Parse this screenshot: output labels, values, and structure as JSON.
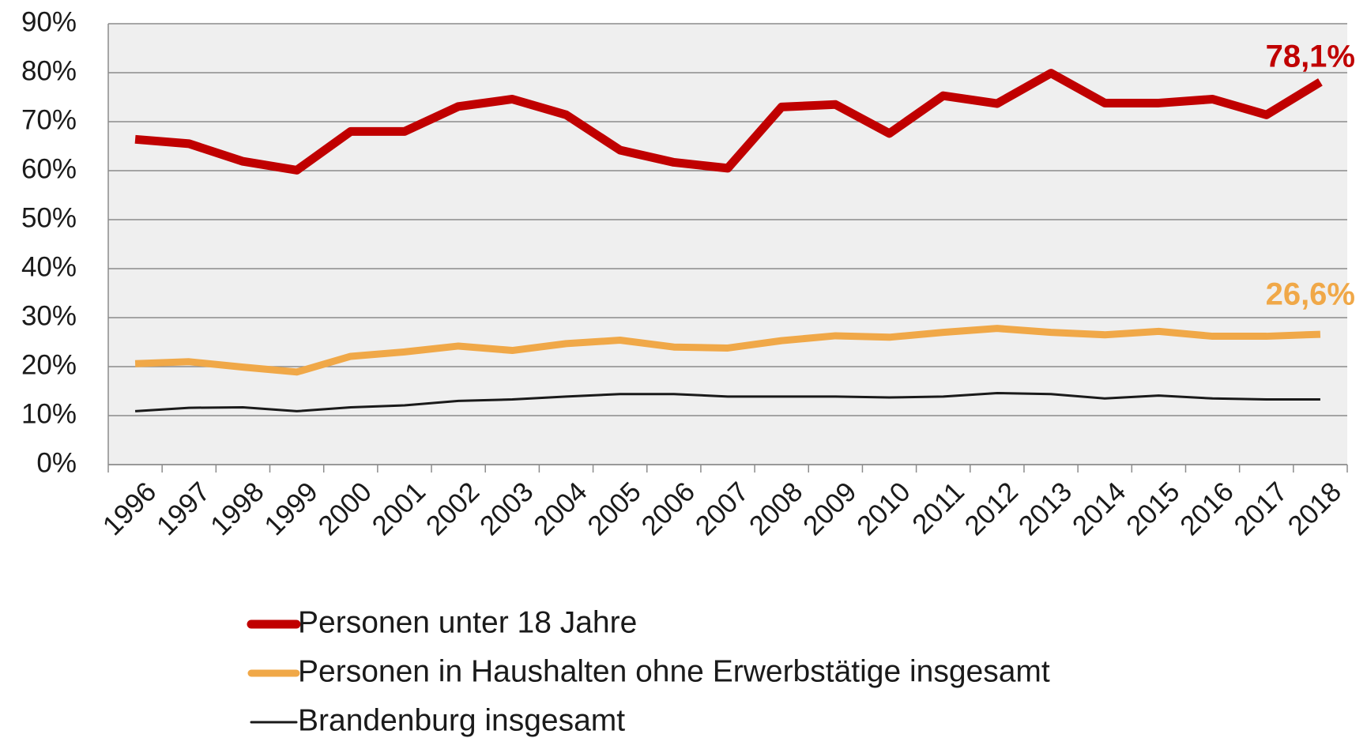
{
  "chart_data": {
    "type": "line",
    "categories": [
      "1996",
      "1997",
      "1998",
      "1999",
      "2000",
      "2001",
      "2002",
      "2003",
      "2004",
      "2005",
      "2006",
      "2007",
      "2008",
      "2009",
      "2010",
      "2011",
      "2012",
      "2013",
      "2014",
      "2015",
      "2016",
      "2017",
      "2018"
    ],
    "series": [
      {
        "name": "Personen unter 18 Jahre",
        "color": "#c00000",
        "values": [
          66.4,
          65.5,
          61.9,
          60.1,
          68.0,
          68.0,
          73.1,
          74.6,
          71.4,
          64.2,
          61.7,
          60.5,
          73.0,
          73.5,
          67.6,
          75.3,
          73.7,
          79.9,
          73.8,
          73.8,
          74.6,
          71.4,
          78.1
        ],
        "value_labels": [
          null,
          null,
          null,
          null,
          null,
          null,
          null,
          null,
          null,
          null,
          null,
          null,
          null,
          null,
          null,
          null,
          null,
          null,
          null,
          null,
          null,
          null,
          "78,1%"
        ]
      },
      {
        "name": "Personen in Haushalten ohne Erwerbstätige insgesamt",
        "color": "#f0a848",
        "values": [
          20.6,
          21.0,
          19.9,
          18.9,
          22.1,
          23.0,
          24.2,
          23.3,
          24.7,
          25.4,
          24.0,
          23.8,
          25.3,
          26.3,
          26.0,
          27.0,
          27.8,
          27.0,
          26.5,
          27.2,
          26.2,
          26.2,
          26.6
        ],
        "value_labels": [
          null,
          null,
          null,
          null,
          null,
          null,
          null,
          null,
          null,
          null,
          null,
          null,
          null,
          null,
          null,
          null,
          null,
          null,
          null,
          null,
          null,
          null,
          "26,6%"
        ]
      },
      {
        "name": "Brandenburg insgesamt",
        "color": "#1a1a1a",
        "values": [
          10.9,
          11.6,
          11.7,
          10.9,
          11.7,
          12.1,
          13.0,
          13.3,
          13.9,
          14.4,
          14.4,
          13.9,
          13.9,
          13.9,
          13.7,
          13.9,
          14.6,
          14.4,
          13.5,
          14.1,
          13.5,
          13.3,
          13.3
        ]
      }
    ],
    "ylim": [
      0,
      90
    ],
    "yticks": [
      {
        "value": 0,
        "label": "0%"
      },
      {
        "value": 10,
        "label": "10%"
      },
      {
        "value": 20,
        "label": "20%"
      },
      {
        "value": 30,
        "label": "30%"
      },
      {
        "value": 40,
        "label": "40%"
      },
      {
        "value": 50,
        "label": "50%"
      },
      {
        "value": 60,
        "label": "60%"
      },
      {
        "value": 70,
        "label": "70%"
      },
      {
        "value": 80,
        "label": "80%"
      },
      {
        "value": 90,
        "label": "90%"
      }
    ],
    "grid": true
  }
}
